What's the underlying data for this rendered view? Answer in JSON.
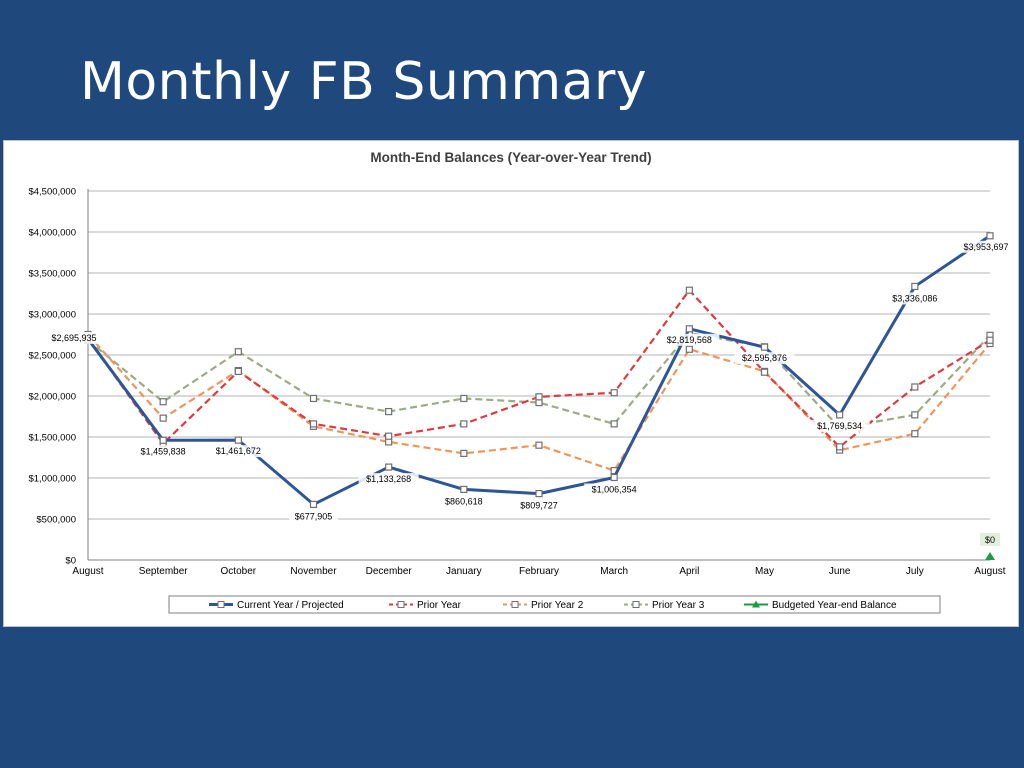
{
  "slide": {
    "title": "Monthly FB Summary"
  },
  "colors": {
    "current": "#2e5597",
    "prior1": "#e0393e",
    "prior2": "#f0955a",
    "prior3": "#9bab85",
    "budget": "#1a9e3f",
    "grid": "#b5b5b5",
    "marker_fill": "#ffffff",
    "marker_stroke": "#707070"
  },
  "chart_data": {
    "type": "line",
    "title": "Month-End Balances (Year-over-Year Trend)",
    "categories": [
      "August",
      "September",
      "October",
      "November",
      "December",
      "January",
      "February",
      "March",
      "April",
      "May",
      "June",
      "July",
      "August"
    ],
    "yticks": [
      "$0",
      "$500,000",
      "$1,000,000",
      "$1,500,000",
      "$2,000,000",
      "$2,500,000",
      "$3,000,000",
      "$3,500,000",
      "$4,000,000",
      "$4,500,000"
    ],
    "ylim": [
      0,
      4500000
    ],
    "grid": true,
    "legend_position": "bottom",
    "series": [
      {
        "name": "Current Year / Projected",
        "color_key": "current",
        "style": "solid",
        "values": [
          2695935,
          1459838,
          1461672,
          677905,
          1133268,
          860618,
          809727,
          1006354,
          2819568,
          2595876,
          1769534,
          3336086,
          3953697
        ],
        "labels": [
          "$2,695,935",
          "$1,459,838",
          "$1,461,672",
          "$677,905",
          "$1,133,268",
          "$860,618",
          "$809,727",
          "$1,006,354",
          "$2,819,568",
          "$2,595,876",
          "$1,769,534",
          "$3,336,086",
          "$3,953,697"
        ]
      },
      {
        "name": "Prior Year",
        "color_key": "prior1",
        "style": "dashed",
        "values": [
          2700000,
          1420000,
          2300000,
          1660000,
          1510000,
          1660000,
          1990000,
          2040000,
          3290000,
          2290000,
          1380000,
          2110000,
          2680000
        ]
      },
      {
        "name": "Prior Year 2",
        "color_key": "prior2",
        "style": "dashed",
        "values": [
          2750000,
          1730000,
          2310000,
          1630000,
          1440000,
          1300000,
          1400000,
          1090000,
          2570000,
          2300000,
          1340000,
          1540000,
          2640000
        ]
      },
      {
        "name": "Prior Year 3",
        "color_key": "prior3",
        "style": "dashed",
        "values": [
          2680000,
          1930000,
          2540000,
          1970000,
          1810000,
          1970000,
          1920000,
          1660000,
          2770000,
          2600000,
          1610000,
          1770000,
          2740000
        ]
      },
      {
        "name": "Budgeted Year-end Balance",
        "color_key": "budget",
        "style": "marker",
        "points": [
          {
            "index": 12,
            "value": 0,
            "label": "$0"
          }
        ]
      }
    ]
  }
}
